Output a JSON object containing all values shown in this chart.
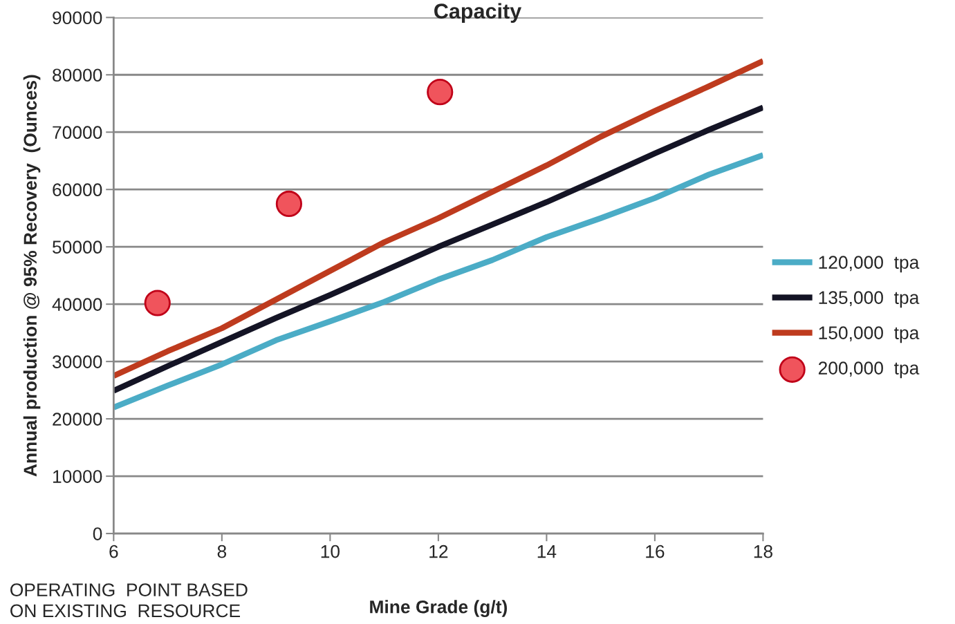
{
  "chart_data": {
    "type": "line",
    "title": "Capacity",
    "xlabel": "Mine Grade (g/t)",
    "ylabel": "Annual production @ 95% Recovery  (Ounces)",
    "x": [
      6,
      7,
      8,
      9,
      10,
      11,
      12,
      13,
      14,
      15,
      16,
      17,
      18
    ],
    "series": [
      {
        "name": "120,000  tpa",
        "color": "#4bacc6",
        "values": [
          22000,
          25800,
          29500,
          33700,
          37000,
          40400,
          44300,
          47700,
          51700,
          55000,
          58500,
          62600,
          66000
        ]
      },
      {
        "name": "135,000  tpa",
        "color": "#141425",
        "values": [
          24900,
          29200,
          33400,
          37600,
          41600,
          45800,
          50000,
          53900,
          57800,
          62000,
          66300,
          70400,
          74300
        ]
      },
      {
        "name": "150,000  tpa",
        "color": "#be3b1e",
        "values": [
          27500,
          31800,
          35800,
          40800,
          45800,
          50800,
          55000,
          59600,
          64200,
          69200,
          73700,
          78000,
          82400
        ]
      },
      {
        "name": "200,000  tpa",
        "type": "scatter",
        "color": "#f0545c",
        "marker": "circle",
        "x": [
          6.81,
          9.24,
          12.03
        ],
        "values": [
          40200,
          57500,
          77000
        ]
      }
    ],
    "xlim": [
      6,
      18
    ],
    "xticks": [
      6,
      8,
      10,
      12,
      14,
      16,
      18
    ],
    "ylim": [
      0,
      90000
    ],
    "yticks": [
      0,
      10000,
      20000,
      30000,
      40000,
      50000,
      60000,
      70000,
      80000,
      90000
    ],
    "grid": "y",
    "legend": "right",
    "annotations": [
      "OPERATING  POINT BASED\nON EXISTING  RESOURCE"
    ]
  }
}
